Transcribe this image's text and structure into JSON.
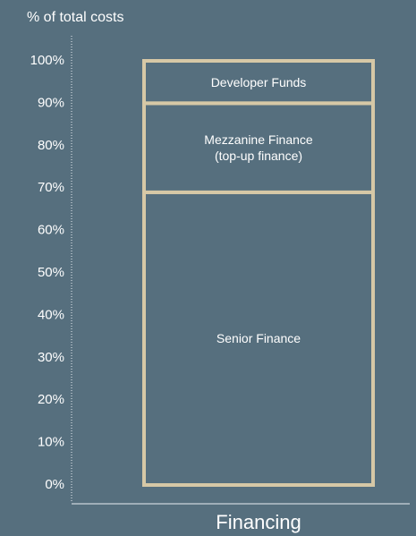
{
  "chart_data": {
    "type": "stacked_bar",
    "y_axis_label": "% of total costs",
    "categories": [
      "Financing"
    ],
    "series": [
      {
        "name": "Senior Finance",
        "color": "#d6c8a6",
        "values": [
          69
        ]
      },
      {
        "name": "Mezzanine Finance\n(top-up finance)",
        "color": "#d6c8a6",
        "values": [
          21
        ]
      },
      {
        "name": "Developer Funds",
        "color": "#d6c8a6",
        "values": [
          10
        ]
      }
    ],
    "ylim": [
      0,
      100
    ],
    "yticks": [
      {
        "value": 0,
        "label": "0%"
      },
      {
        "value": 10,
        "label": "10%"
      },
      {
        "value": 20,
        "label": "20%"
      },
      {
        "value": 30,
        "label": "30%"
      },
      {
        "value": 40,
        "label": "40%"
      },
      {
        "value": 50,
        "label": "50%"
      },
      {
        "value": 60,
        "label": "60%"
      },
      {
        "value": 70,
        "label": "70%"
      },
      {
        "value": 80,
        "label": "80%"
      },
      {
        "value": 90,
        "label": "90%"
      },
      {
        "value": 100,
        "label": "100%"
      }
    ],
    "grid": false
  }
}
